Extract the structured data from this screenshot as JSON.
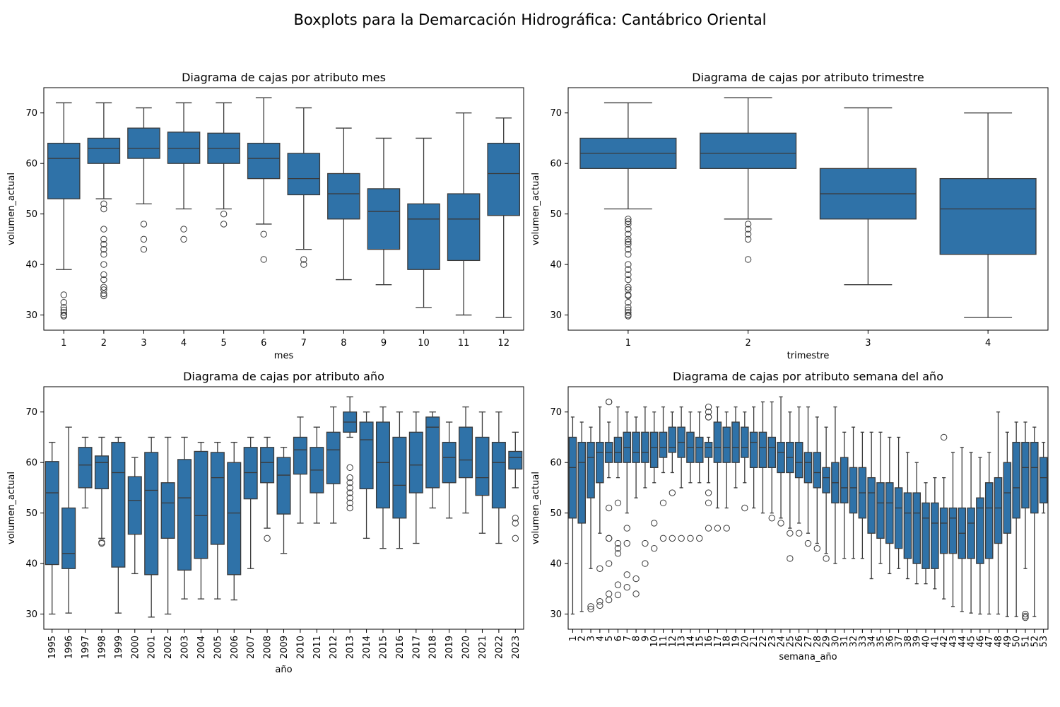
{
  "figure": {
    "title": "Boxplots para la Demarcación Hidrográfica: Cantábrico Oriental",
    "box_color": "#2f72a8",
    "line_color": "#3a3a3a"
  },
  "chart_data": [
    {
      "type": "box",
      "title": "Diagrama de cajas por atributo mes",
      "xlabel": "mes",
      "ylabel": "volumen_actual",
      "ylim": [
        27,
        75
      ],
      "yticks": [
        30,
        40,
        50,
        60,
        70
      ],
      "categories": [
        "1",
        "2",
        "3",
        "4",
        "5",
        "6",
        "7",
        "8",
        "9",
        "10",
        "11",
        "12"
      ],
      "boxes": [
        {
          "wl": 39,
          "q1": 53,
          "med": 61,
          "q3": 64,
          "wh": 72,
          "out": [
            34,
            32.5,
            31.5,
            31,
            30.5,
            30,
            29.8
          ]
        },
        {
          "wl": 53,
          "q1": 60,
          "med": 63,
          "q3": 65,
          "wh": 72,
          "out": [
            52,
            51,
            47,
            45,
            44,
            43,
            42,
            40,
            38,
            37,
            35.5,
            35,
            34.2,
            33.8
          ]
        },
        {
          "wl": 52,
          "q1": 61,
          "med": 63,
          "q3": 67,
          "wh": 71,
          "out": [
            48,
            45,
            43
          ]
        },
        {
          "wl": 51,
          "q1": 60,
          "med": 63,
          "q3": 66.2,
          "wh": 72,
          "out": [
            47,
            45
          ]
        },
        {
          "wl": 51,
          "q1": 60,
          "med": 63,
          "q3": 66,
          "wh": 72,
          "out": [
            50,
            48
          ]
        },
        {
          "wl": 48,
          "q1": 57,
          "med": 61,
          "q3": 64,
          "wh": 73,
          "out": [
            46,
            41
          ]
        },
        {
          "wl": 43,
          "q1": 53.8,
          "med": 57,
          "q3": 62,
          "wh": 71,
          "out": [
            41,
            40
          ]
        },
        {
          "wl": 37,
          "q1": 49,
          "med": 54,
          "q3": 58,
          "wh": 67,
          "out": []
        },
        {
          "wl": 36,
          "q1": 43,
          "med": 50.5,
          "q3": 55,
          "wh": 65,
          "out": []
        },
        {
          "wl": 31.5,
          "q1": 39,
          "med": 49,
          "q3": 52,
          "wh": 65,
          "out": []
        },
        {
          "wl": 30,
          "q1": 40.8,
          "med": 49,
          "q3": 54,
          "wh": 70,
          "out": []
        },
        {
          "wl": 29.5,
          "q1": 49.7,
          "med": 58,
          "q3": 64,
          "wh": 69,
          "out": []
        }
      ]
    },
    {
      "type": "box",
      "title": "Diagrama de cajas por atributo trimestre",
      "xlabel": "trimestre",
      "ylabel": "volumen_actual",
      "ylim": [
        27,
        75
      ],
      "yticks": [
        30,
        40,
        50,
        60,
        70
      ],
      "categories": [
        "1",
        "2",
        "3",
        "4"
      ],
      "boxes": [
        {
          "wl": 51,
          "q1": 59,
          "med": 62,
          "q3": 65,
          "wh": 72,
          "out": [
            49,
            48.5,
            48,
            47,
            46,
            45,
            44.5,
            44,
            43,
            42,
            40,
            39,
            38,
            37,
            35.5,
            35,
            34,
            33.8,
            32.5,
            31.5,
            31,
            30.5,
            30,
            29.8
          ]
        },
        {
          "wl": 49,
          "q1": 59,
          "med": 62,
          "q3": 66,
          "wh": 73,
          "out": [
            48,
            47,
            46,
            45,
            41
          ]
        },
        {
          "wl": 36,
          "q1": 49,
          "med": 54,
          "q3": 59,
          "wh": 71,
          "out": []
        },
        {
          "wl": 29.5,
          "q1": 42,
          "med": 51,
          "q3": 57,
          "wh": 70,
          "out": []
        }
      ]
    },
    {
      "type": "box",
      "title": "Diagrama de cajas por atributo año",
      "xlabel": "año",
      "ylabel": "volumen_actual",
      "ylim": [
        27,
        75
      ],
      "yticks": [
        30,
        40,
        50,
        60,
        70
      ],
      "categories": [
        "1995",
        "1996",
        "1997",
        "1998",
        "1999",
        "2000",
        "2001",
        "2002",
        "2003",
        "2004",
        "2005",
        "2006",
        "2007",
        "2008",
        "2009",
        "2010",
        "2011",
        "2012",
        "2013",
        "2014",
        "2015",
        "2016",
        "2017",
        "2018",
        "2019",
        "2020",
        "2021",
        "2022",
        "2023"
      ],
      "boxes": [
        {
          "wl": 30,
          "q1": 39.8,
          "med": 54,
          "q3": 60.2,
          "wh": 64,
          "out": []
        },
        {
          "wl": 30.2,
          "q1": 39,
          "med": 42,
          "q3": 51,
          "wh": 67,
          "out": []
        },
        {
          "wl": 51,
          "q1": 55,
          "med": 59.5,
          "q3": 63,
          "wh": 65,
          "out": []
        },
        {
          "wl": 45,
          "q1": 54.8,
          "med": 60,
          "q3": 61.3,
          "wh": 65,
          "out": [
            44.2,
            44
          ]
        },
        {
          "wl": 30.2,
          "q1": 39.3,
          "med": 58,
          "q3": 64,
          "wh": 65,
          "out": []
        },
        {
          "wl": 38,
          "q1": 45.8,
          "med": 52.5,
          "q3": 57.2,
          "wh": 61,
          "out": []
        },
        {
          "wl": 29.4,
          "q1": 37.8,
          "med": 54.5,
          "q3": 62,
          "wh": 65,
          "out": []
        },
        {
          "wl": 30,
          "q1": 45,
          "med": 52,
          "q3": 56,
          "wh": 65,
          "out": []
        },
        {
          "wl": 33,
          "q1": 38.7,
          "med": 53,
          "q3": 60.6,
          "wh": 65,
          "out": []
        },
        {
          "wl": 33,
          "q1": 41,
          "med": 49.5,
          "q3": 62.2,
          "wh": 64,
          "out": []
        },
        {
          "wl": 33,
          "q1": 43.8,
          "med": 57,
          "q3": 62,
          "wh": 64,
          "out": []
        },
        {
          "wl": 32.8,
          "q1": 37.8,
          "med": 50,
          "q3": 60,
          "wh": 64,
          "out": []
        },
        {
          "wl": 39,
          "q1": 52.8,
          "med": 58,
          "q3": 63,
          "wh": 65,
          "out": []
        },
        {
          "wl": 47,
          "q1": 56,
          "med": 60,
          "q3": 63,
          "wh": 65,
          "out": [
            45
          ]
        },
        {
          "wl": 42,
          "q1": 49.8,
          "med": 57.5,
          "q3": 61,
          "wh": 63,
          "out": []
        },
        {
          "wl": 48,
          "q1": 57.7,
          "med": 62.5,
          "q3": 65,
          "wh": 69,
          "out": []
        },
        {
          "wl": 48,
          "q1": 54,
          "med": 58.5,
          "q3": 63,
          "wh": 67,
          "out": []
        },
        {
          "wl": 48,
          "q1": 55.8,
          "med": 62.5,
          "q3": 66,
          "wh": 71,
          "out": []
        },
        {
          "wl": 65,
          "q1": 66,
          "med": 68,
          "q3": 70,
          "wh": 73,
          "out": [
            59,
            57,
            56,
            55,
            54,
            53,
            52,
            51
          ]
        },
        {
          "wl": 45,
          "q1": 54.8,
          "med": 64.5,
          "q3": 68,
          "wh": 70,
          "out": []
        },
        {
          "wl": 43,
          "q1": 51,
          "med": 60,
          "q3": 68,
          "wh": 71,
          "out": []
        },
        {
          "wl": 43,
          "q1": 49,
          "med": 55.5,
          "q3": 65,
          "wh": 70,
          "out": []
        },
        {
          "wl": 44,
          "q1": 54,
          "med": 59.5,
          "q3": 66,
          "wh": 70,
          "out": []
        },
        {
          "wl": 51,
          "q1": 55,
          "med": 67,
          "q3": 69,
          "wh": 70,
          "out": []
        },
        {
          "wl": 49,
          "q1": 56,
          "med": 61,
          "q3": 64,
          "wh": 68,
          "out": []
        },
        {
          "wl": 50,
          "q1": 57,
          "med": 60.5,
          "q3": 67,
          "wh": 71,
          "out": []
        },
        {
          "wl": 46,
          "q1": 53.5,
          "med": 57,
          "q3": 65,
          "wh": 70,
          "out": []
        },
        {
          "wl": 44,
          "q1": 51,
          "med": 60,
          "q3": 64,
          "wh": 70,
          "out": []
        },
        {
          "wl": 55,
          "q1": 58.7,
          "med": 61,
          "q3": 62.2,
          "wh": 66,
          "out": [
            49,
            48,
            45
          ]
        }
      ]
    },
    {
      "type": "box",
      "title": "Diagrama de cajas por atributo semana del año",
      "xlabel": "semana_año",
      "ylabel": "volumen_actual",
      "ylim": [
        27,
        75
      ],
      "yticks": [
        30,
        40,
        50,
        60,
        70
      ],
      "categories": [
        "1",
        "2",
        "3",
        "4",
        "5",
        "6",
        "7",
        "8",
        "9",
        "10",
        "11",
        "12",
        "13",
        "14",
        "15",
        "16",
        "17",
        "18",
        "19",
        "20",
        "21",
        "22",
        "23",
        "24",
        "25",
        "26",
        "27",
        "28",
        "29",
        "30",
        "31",
        "32",
        "33",
        "34",
        "35",
        "36",
        "37",
        "38",
        "39",
        "40",
        "41",
        "42",
        "43",
        "44",
        "45",
        "46",
        "47",
        "48",
        "49",
        "50",
        "51",
        "52",
        "53"
      ],
      "boxes": [
        {
          "wl": 30,
          "q1": 49,
          "med": 59,
          "q3": 65,
          "wh": 69,
          "out": []
        },
        {
          "wl": 30.5,
          "q1": 48,
          "med": 60,
          "q3": 64,
          "wh": 68,
          "out": []
        },
        {
          "wl": 39,
          "q1": 53,
          "med": 61,
          "q3": 64,
          "wh": 67,
          "out": [
            31.5,
            31
          ]
        },
        {
          "wl": 46,
          "q1": 56,
          "med": 62,
          "q3": 64,
          "wh": 71,
          "out": [
            39,
            32.5,
            31.7
          ]
        },
        {
          "wl": 57,
          "q1": 60,
          "med": 62,
          "q3": 64,
          "wh": 68,
          "out": [
            72,
            72,
            51,
            45,
            45,
            40,
            34,
            32.8
          ]
        },
        {
          "wl": 57,
          "q1": 60,
          "med": 62,
          "q3": 65,
          "wh": 71,
          "out": [
            52,
            44,
            43,
            42,
            35.8,
            33.8
          ]
        },
        {
          "wl": 50,
          "q1": 60,
          "med": 63,
          "q3": 66,
          "wh": 70,
          "out": [
            47,
            44,
            37.8,
            35.3
          ]
        },
        {
          "wl": 53,
          "q1": 60,
          "med": 62,
          "q3": 66,
          "wh": 69,
          "out": [
            37,
            34
          ]
        },
        {
          "wl": 55,
          "q1": 60,
          "med": 62,
          "q3": 66,
          "wh": 71,
          "out": [
            44,
            40
          ]
        },
        {
          "wl": 56,
          "q1": 59,
          "med": 63,
          "q3": 66,
          "wh": 70,
          "out": [
            48,
            43
          ]
        },
        {
          "wl": 58,
          "q1": 61,
          "med": 63,
          "q3": 66,
          "wh": 71,
          "out": [
            52,
            45
          ]
        },
        {
          "wl": 58,
          "q1": 62,
          "med": 63,
          "q3": 67,
          "wh": 70,
          "out": [
            54,
            45
          ]
        },
        {
          "wl": 55,
          "q1": 61,
          "med": 64,
          "q3": 67,
          "wh": 71,
          "out": [
            45
          ]
        },
        {
          "wl": 56,
          "q1": 60,
          "med": 63,
          "q3": 66,
          "wh": 70,
          "out": [
            45
          ]
        },
        {
          "wl": 56,
          "q1": 60,
          "med": 63,
          "q3": 65,
          "wh": 70,
          "out": [
            45
          ]
        },
        {
          "wl": 56,
          "q1": 61,
          "med": 63,
          "q3": 64,
          "wh": 65,
          "out": [
            71,
            70,
            69,
            69,
            54,
            52,
            47
          ]
        },
        {
          "wl": 51,
          "q1": 60,
          "med": 63,
          "q3": 68,
          "wh": 71,
          "out": [
            47
          ]
        },
        {
          "wl": 51,
          "q1": 60,
          "med": 63,
          "q3": 67,
          "wh": 70,
          "out": [
            47
          ]
        },
        {
          "wl": 55,
          "q1": 60,
          "med": 63,
          "q3": 68,
          "wh": 71,
          "out": []
        },
        {
          "wl": 56,
          "q1": 61,
          "med": 63,
          "q3": 67,
          "wh": 70,
          "out": [
            51
          ]
        },
        {
          "wl": 51,
          "q1": 59,
          "med": 64,
          "q3": 66,
          "wh": 71,
          "out": []
        },
        {
          "wl": 50,
          "q1": 59,
          "med": 63,
          "q3": 66,
          "wh": 72,
          "out": []
        },
        {
          "wl": 50,
          "q1": 59,
          "med": 63,
          "q3": 65,
          "wh": 72,
          "out": [
            49
          ]
        },
        {
          "wl": 49,
          "q1": 58,
          "med": 62,
          "q3": 64,
          "wh": 73,
          "out": [
            48
          ]
        },
        {
          "wl": 47,
          "q1": 58,
          "med": 61,
          "q3": 64,
          "wh": 70,
          "out": [
            46,
            41
          ]
        },
        {
          "wl": 48,
          "q1": 57,
          "med": 60,
          "q3": 64,
          "wh": 71,
          "out": [
            46
          ]
        },
        {
          "wl": 46,
          "q1": 56,
          "med": 60,
          "q3": 62,
          "wh": 71,
          "out": [
            44
          ]
        },
        {
          "wl": 44,
          "q1": 55,
          "med": 58,
          "q3": 62,
          "wh": 69,
          "out": [
            43
          ]
        },
        {
          "wl": 42,
          "q1": 54,
          "med": 57,
          "q3": 59,
          "wh": 67,
          "out": [
            41
          ]
        },
        {
          "wl": 40,
          "q1": 52,
          "med": 56,
          "q3": 60,
          "wh": 71,
          "out": []
        },
        {
          "wl": 41,
          "q1": 52,
          "med": 55,
          "q3": 61,
          "wh": 66,
          "out": []
        },
        {
          "wl": 41,
          "q1": 50,
          "med": 55,
          "q3": 59,
          "wh": 67,
          "out": []
        },
        {
          "wl": 41,
          "q1": 49,
          "med": 54,
          "q3": 59,
          "wh": 66,
          "out": []
        },
        {
          "wl": 37,
          "q1": 46,
          "med": 54,
          "q3": 57,
          "wh": 66,
          "out": []
        },
        {
          "wl": 40,
          "q1": 45,
          "med": 52,
          "q3": 56,
          "wh": 66,
          "out": []
        },
        {
          "wl": 38,
          "q1": 44,
          "med": 52,
          "q3": 56,
          "wh": 65,
          "out": []
        },
        {
          "wl": 39,
          "q1": 43,
          "med": 51,
          "q3": 55,
          "wh": 65,
          "out": []
        },
        {
          "wl": 37,
          "q1": 41,
          "med": 50,
          "q3": 54,
          "wh": 62,
          "out": []
        },
        {
          "wl": 36,
          "q1": 40,
          "med": 50,
          "q3": 54,
          "wh": 60,
          "out": []
        },
        {
          "wl": 36,
          "q1": 39,
          "med": 49,
          "q3": 52,
          "wh": 56,
          "out": []
        },
        {
          "wl": 35,
          "q1": 39,
          "med": 48,
          "q3": 52,
          "wh": 57,
          "out": []
        },
        {
          "wl": 33,
          "q1": 42,
          "med": 48,
          "q3": 51,
          "wh": 57,
          "out": [
            65
          ]
        },
        {
          "wl": 31.5,
          "q1": 42,
          "med": 49,
          "q3": 51,
          "wh": 62,
          "out": []
        },
        {
          "wl": 30.5,
          "q1": 41,
          "med": 46,
          "q3": 51,
          "wh": 63,
          "out": []
        },
        {
          "wl": 30.2,
          "q1": 41,
          "med": 48,
          "q3": 51,
          "wh": 62,
          "out": []
        },
        {
          "wl": 30,
          "q1": 40,
          "med": 51,
          "q3": 53,
          "wh": 61,
          "out": []
        },
        {
          "wl": 30,
          "q1": 41,
          "med": 51,
          "q3": 56,
          "wh": 62,
          "out": []
        },
        {
          "wl": 30,
          "q1": 44,
          "med": 51,
          "q3": 57,
          "wh": 70,
          "out": []
        },
        {
          "wl": 29.5,
          "q1": 46,
          "med": 54,
          "q3": 60,
          "wh": 66,
          "out": []
        },
        {
          "wl": 29.5,
          "q1": 49,
          "med": 55,
          "q3": 64,
          "wh": 68,
          "out": []
        },
        {
          "wl": 39,
          "q1": 51,
          "med": 59,
          "q3": 64,
          "wh": 68,
          "out": [
            30,
            29.6,
            29.3
          ]
        },
        {
          "wl": 29.5,
          "q1": 50,
          "med": 59,
          "q3": 64,
          "wh": 67,
          "out": []
        },
        {
          "wl": 50,
          "q1": 52,
          "med": 57,
          "q3": 61,
          "wh": 64,
          "out": []
        }
      ]
    }
  ]
}
